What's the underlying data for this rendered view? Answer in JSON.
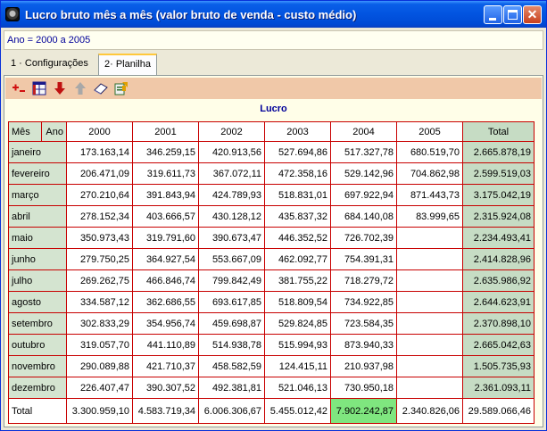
{
  "window": {
    "title": "Lucro bruto mês a mês (valor bruto de venda - custo médio)",
    "icon": "app-logo-icon",
    "controls": [
      "minimize-icon",
      "maximize-icon",
      "close-icon"
    ]
  },
  "filter": {
    "text": "Ano = 2000 a 2005"
  },
  "tabs": [
    {
      "label": "1 · Configurações",
      "active": false
    },
    {
      "label": "2· Planilha",
      "active": true
    }
  ],
  "toolbar": {
    "icons": [
      "add-row-icon",
      "table-icon",
      "arrow-down-icon",
      "arrow-up-icon",
      "eraser-icon",
      "export-icon"
    ]
  },
  "grid": {
    "title": "Lucro",
    "row_header": "Mês",
    "col_header": "Ano",
    "columns": [
      "2000",
      "2001",
      "2002",
      "2003",
      "2004",
      "2005",
      "Total"
    ],
    "rows": [
      {
        "label": "janeiro",
        "values": [
          "173.163,14",
          "346.259,15",
          "420.913,56",
          "527.694,86",
          "517.327,78",
          "680.519,70",
          "2.665.878,19"
        ]
      },
      {
        "label": "fevereiro",
        "values": [
          "206.471,09",
          "319.611,73",
          "367.072,11",
          "472.358,16",
          "529.142,96",
          "704.862,98",
          "2.599.519,03"
        ]
      },
      {
        "label": "março",
        "values": [
          "270.210,64",
          "391.843,94",
          "424.789,93",
          "518.831,01",
          "697.922,94",
          "871.443,73",
          "3.175.042,19"
        ]
      },
      {
        "label": "abril",
        "values": [
          "278.152,34",
          "403.666,57",
          "430.128,12",
          "435.837,32",
          "684.140,08",
          "83.999,65",
          "2.315.924,08"
        ]
      },
      {
        "label": "maio",
        "values": [
          "350.973,43",
          "319.791,60",
          "390.673,47",
          "446.352,52",
          "726.702,39",
          "",
          "2.234.493,41"
        ]
      },
      {
        "label": "junho",
        "values": [
          "279.750,25",
          "364.927,54",
          "553.667,09",
          "462.092,77",
          "754.391,31",
          "",
          "2.414.828,96"
        ]
      },
      {
        "label": "julho",
        "values": [
          "269.262,75",
          "466.846,74",
          "799.842,49",
          "381.755,22",
          "718.279,72",
          "",
          "2.635.986,92"
        ]
      },
      {
        "label": "agosto",
        "values": [
          "334.587,12",
          "362.686,55",
          "693.617,85",
          "518.809,54",
          "734.922,85",
          "",
          "2.644.623,91"
        ]
      },
      {
        "label": "setembro",
        "values": [
          "302.833,29",
          "354.956,74",
          "459.698,87",
          "529.824,85",
          "723.584,35",
          "",
          "2.370.898,10"
        ]
      },
      {
        "label": "outubro",
        "values": [
          "319.057,70",
          "441.110,89",
          "514.938,78",
          "515.994,93",
          "873.940,33",
          "",
          "2.665.042,63"
        ]
      },
      {
        "label": "novembro",
        "values": [
          "290.089,88",
          "421.710,37",
          "458.582,59",
          "124.415,11",
          "210.937,98",
          "",
          "1.505.735,93"
        ]
      },
      {
        "label": "dezembro",
        "values": [
          "226.407,47",
          "390.307,52",
          "492.381,81",
          "521.046,13",
          "730.950,18",
          "",
          "2.361.093,11"
        ]
      }
    ],
    "total_row": {
      "label": "Total",
      "values": [
        "3.300.959,10",
        "4.583.719,34",
        "6.006.306,67",
        "5.455.012,42",
        "7.902.242,87",
        "2.340.826,06",
        "29.589.066,46"
      ],
      "highlight_index": 4,
      "highlight_color": "#7fe67f"
    }
  },
  "colors": {
    "titlebar": "#0254e0",
    "toolbar": "#f0c8a8",
    "grid_border": "#c80000",
    "header_cell": "#d4e4d0",
    "text_accent": "#000099"
  }
}
